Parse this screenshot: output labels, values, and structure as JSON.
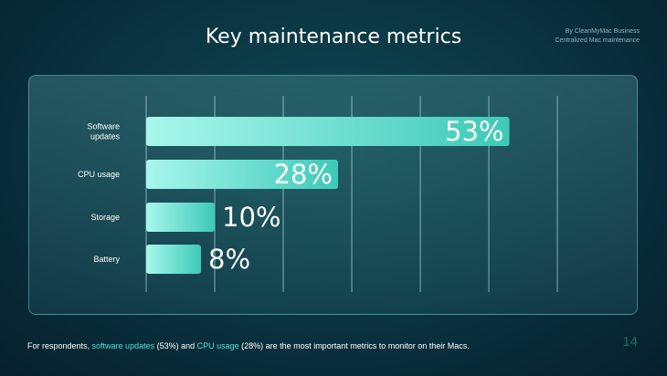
{
  "title": "Key maintenance metrics",
  "brand": {
    "line1": "By CleanMyMac Business",
    "line2": "Centralized Mac maintenance"
  },
  "footnote": {
    "prefix": "For respondents, ",
    "highlight1": "software updates",
    "mid1": " (53%) and ",
    "highlight2": "CPU usage",
    "suffix": " (28%) are the most important metrics to monitor on their Macs."
  },
  "page_number": "14",
  "colors": {
    "bar_start": "#9ff5ea",
    "bar_end": "#3ec9b8",
    "highlight": "#4fe0d2",
    "grid": "#a9d4d2"
  },
  "chart_data": {
    "type": "bar",
    "orientation": "horizontal",
    "categories": [
      [
        "Software",
        "updates"
      ],
      [
        "CPU usage"
      ],
      [
        "Storage"
      ],
      [
        "Battery"
      ]
    ],
    "values": [
      53,
      28,
      10,
      8
    ],
    "value_labels": [
      "53%",
      "28%",
      "10%",
      "8%"
    ],
    "xlim": [
      0,
      70
    ],
    "grid": true,
    "title": "Key maintenance metrics"
  }
}
